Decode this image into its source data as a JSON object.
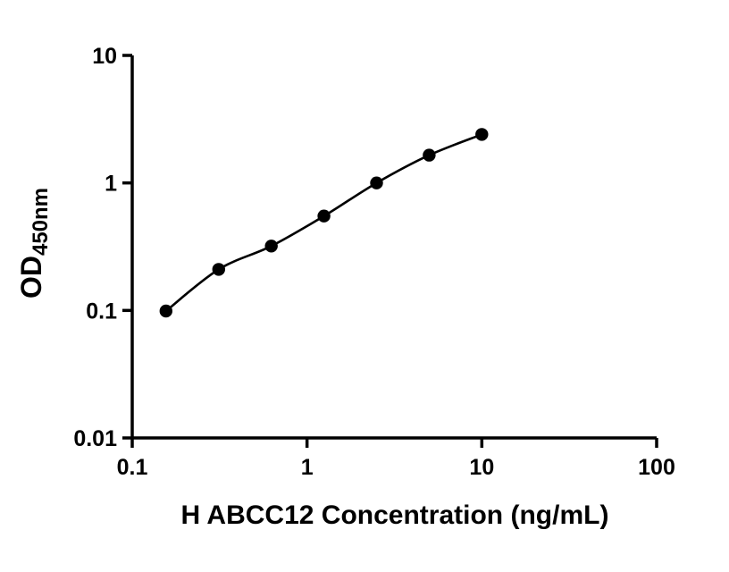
{
  "chart_data": {
    "type": "scatter",
    "title": "",
    "xlabel": "H ABCC12 Concentration (ng/mL)",
    "ylabel_main": "OD",
    "ylabel_sub": "450nm",
    "xscale": "log",
    "yscale": "log",
    "xlim": [
      0.1,
      100
    ],
    "ylim": [
      0.01,
      10
    ],
    "grid": false,
    "legend": "none",
    "marker": "circle",
    "point_color": "#000000",
    "line_color": "#000000",
    "axis_color": "#000000",
    "background_color": "#ffffff",
    "x": [
      0.156,
      0.3125,
      0.625,
      1.25,
      2.5,
      5,
      10
    ],
    "y": [
      0.099,
      0.21,
      0.32,
      0.55,
      1.0,
      1.65,
      2.4
    ],
    "x_ticks": [
      {
        "v": 0.1,
        "label": "0.1"
      },
      {
        "v": 1,
        "label": "1"
      },
      {
        "v": 10,
        "label": "10"
      },
      {
        "v": 100,
        "label": "100"
      }
    ],
    "y_ticks": [
      {
        "v": 0.01,
        "label": "0.01"
      },
      {
        "v": 0.1,
        "label": "0.1"
      },
      {
        "v": 1,
        "label": "1"
      },
      {
        "v": 10,
        "label": "10"
      }
    ]
  }
}
